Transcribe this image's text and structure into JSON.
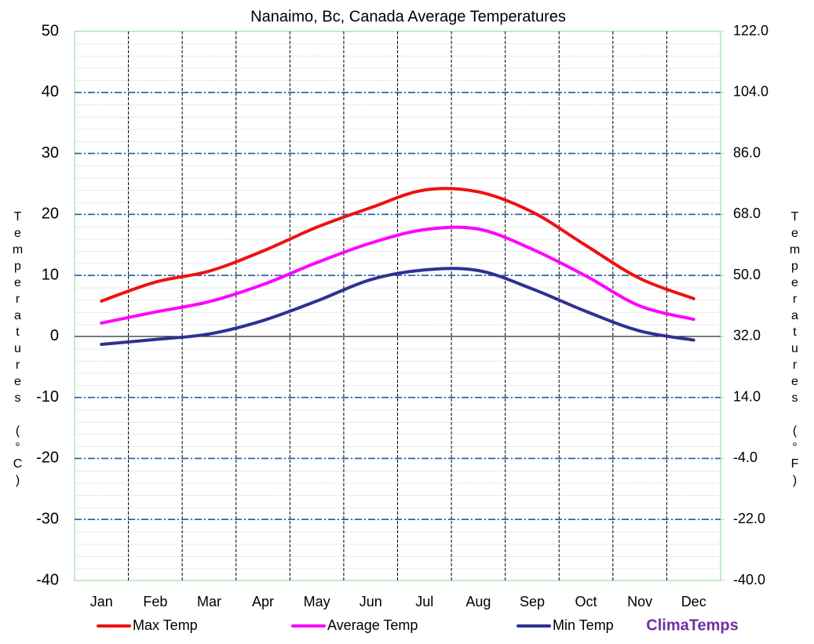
{
  "chart_data": {
    "type": "line",
    "title": "Nanaimo, Bc, Canada Average  Temperatures",
    "y_label": "Temperatures (°C)",
    "y2_label": "Temperatures (°F)",
    "categories": [
      "Jan",
      "Feb",
      "Mar",
      "Apr",
      "May",
      "Jun",
      "Jul",
      "Aug",
      "Sep",
      "Oct",
      "Nov",
      "Dec"
    ],
    "series": [
      {
        "name": "Max Temp",
        "color": "#ee1111",
        "values": [
          5.8,
          8.9,
          10.7,
          14.0,
          17.9,
          21.1,
          24.0,
          23.7,
          20.4,
          14.9,
          9.5,
          6.2
        ]
      },
      {
        "name": "Average Temp",
        "color": "#ff00ff",
        "values": [
          2.2,
          4.0,
          5.7,
          8.5,
          12.1,
          15.3,
          17.5,
          17.6,
          14.3,
          9.9,
          5.0,
          2.8
        ]
      },
      {
        "name": "Min Temp",
        "color": "#2e3192",
        "values": [
          -1.3,
          -0.5,
          0.4,
          2.6,
          5.8,
          9.3,
          10.9,
          10.8,
          7.8,
          4.1,
          0.9,
          -0.6
        ]
      }
    ],
    "ylim": [
      -40,
      50
    ],
    "yticks": [
      -40,
      -30,
      -20,
      -10,
      0,
      10,
      20,
      30,
      40,
      50
    ],
    "y2lim": [
      -40,
      122
    ],
    "y2ticks": [
      {
        "value": -40,
        "label": "-40.0"
      },
      {
        "value": -22,
        "label": "-22.0"
      },
      {
        "value": -4,
        "label": "-4.0"
      },
      {
        "value": 14,
        "label": "14.0"
      },
      {
        "value": 32,
        "label": "32.0"
      },
      {
        "value": 50,
        "label": "50.0"
      },
      {
        "value": 68,
        "label": "68.0"
      },
      {
        "value": 86,
        "label": "86.0"
      },
      {
        "value": 104,
        "label": "104.0"
      },
      {
        "value": 122,
        "label": "122.0"
      }
    ],
    "grid": true,
    "legend": "bottom",
    "brand": "ClimaTemps"
  }
}
